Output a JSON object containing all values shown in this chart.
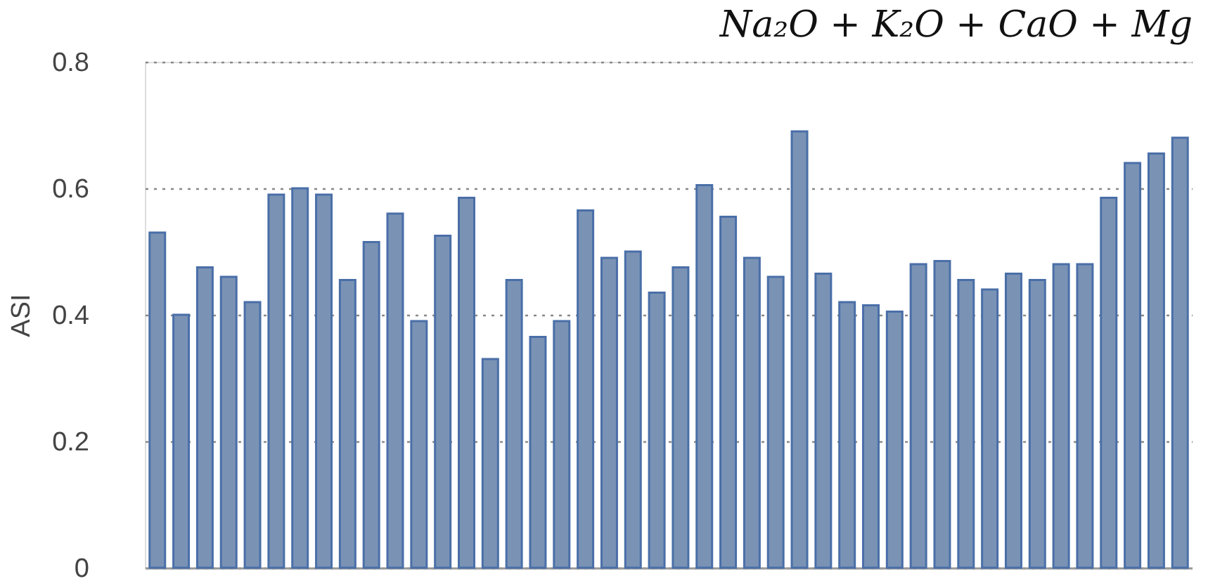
{
  "chart_data": {
    "type": "bar",
    "title": "Na₂O + K₂O + CaO + Mg",
    "ylabel": "ASI",
    "categories": [
      null,
      null,
      null,
      null,
      null,
      null,
      null,
      null,
      null,
      null,
      null,
      null,
      null,
      null,
      null,
      null,
      null,
      null,
      null,
      null,
      null,
      null,
      null,
      null,
      null,
      null,
      null,
      null,
      null,
      null,
      null,
      null,
      null,
      null,
      null,
      null,
      null,
      null,
      null,
      null,
      null,
      null,
      null,
      null
    ],
    "values": [
      0.53,
      0.4,
      0.475,
      0.46,
      0.42,
      0.59,
      0.6,
      0.59,
      0.455,
      0.515,
      0.56,
      0.39,
      0.525,
      0.585,
      0.33,
      0.455,
      0.365,
      0.39,
      0.565,
      0.49,
      0.5,
      0.435,
      0.475,
      0.605,
      0.555,
      0.49,
      0.46,
      0.69,
      0.465,
      0.42,
      0.415,
      0.405,
      0.48,
      0.485,
      0.455,
      0.44,
      0.465,
      0.455,
      0.48,
      0.48,
      0.585,
      0.64,
      0.655,
      0.68
    ],
    "color": "#7a93b5",
    "ylim": [
      0,
      0.8
    ],
    "yticks": [
      0,
      0.2,
      0.4,
      0.6,
      0.8
    ],
    "grid": "y"
  }
}
